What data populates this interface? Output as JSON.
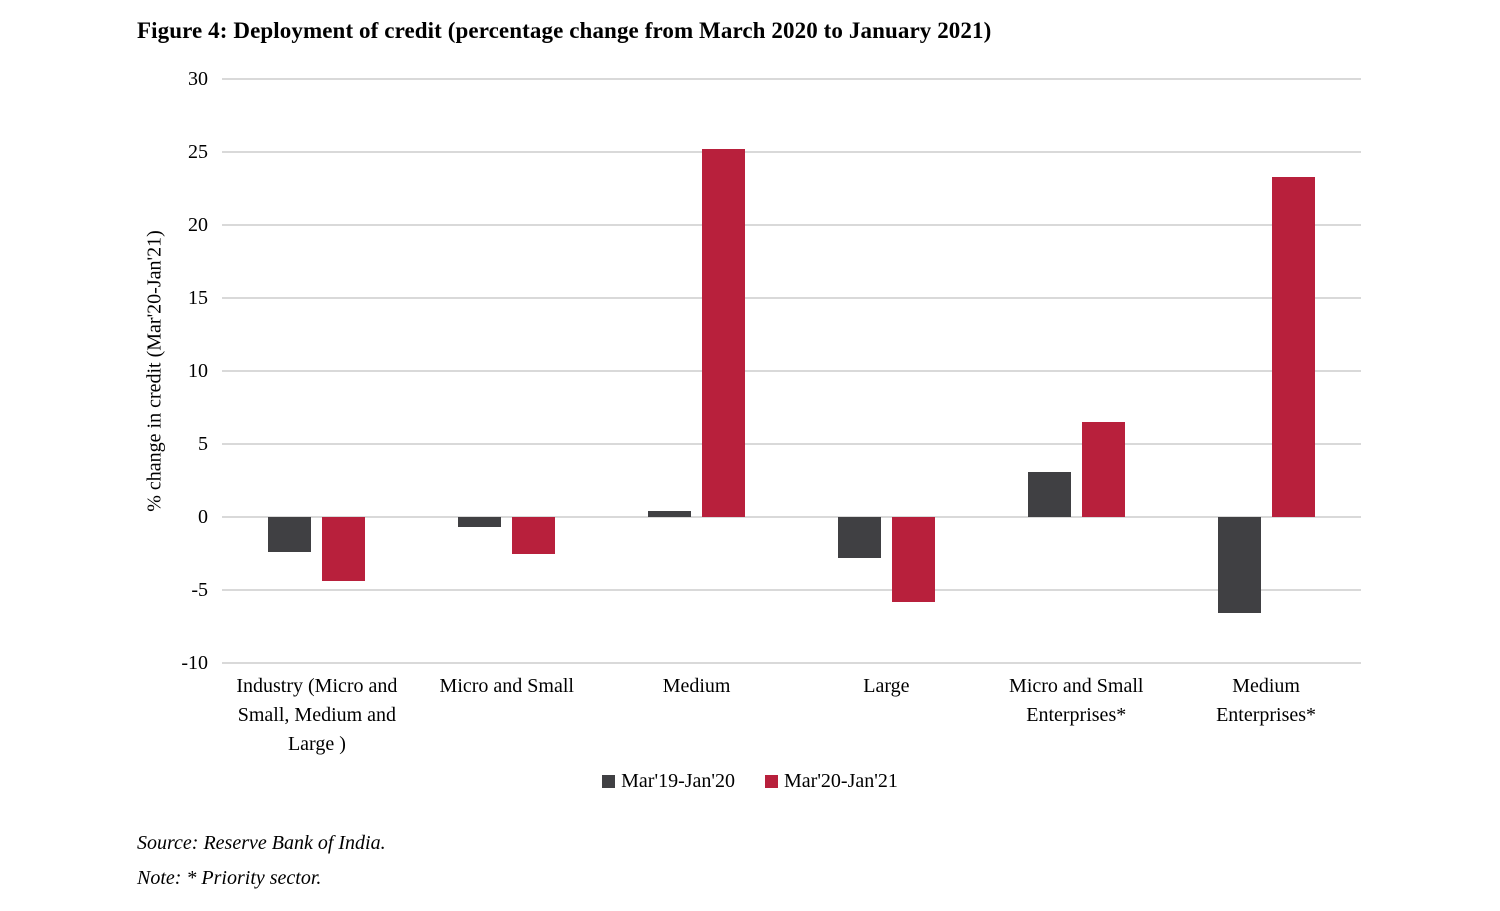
{
  "title": "Figure 4: Deployment of credit (percentage change from March 2020 to January 2021)",
  "chart_data": {
    "type": "bar",
    "categories": [
      "Industry (Micro and\nSmall, Medium and\nLarge )",
      "Micro and Small",
      "Medium",
      "Large",
      "Micro and Small\nEnterprises*",
      "Medium\nEnterprises*"
    ],
    "series": [
      {
        "name": "Mar'19-Jan'20",
        "color": "#404043",
        "values": [
          -2.4,
          -0.7,
          0.4,
          -2.8,
          3.1,
          -6.6
        ]
      },
      {
        "name": "Mar'20-Jan'21",
        "color": "#b8203c",
        "values": [
          -4.4,
          -2.5,
          25.2,
          -5.8,
          6.5,
          23.3
        ]
      }
    ],
    "xlabel": "",
    "ylabel": "% change in credit (Mar'20-Jan'21)",
    "ylim": [
      -10,
      30
    ],
    "yticks": [
      30,
      25,
      20,
      15,
      10,
      5,
      0,
      -5,
      -10
    ],
    "grid": "horizontal",
    "gridline_color": "#d9d9d9",
    "legend_position": "bottom"
  },
  "source": "Source: Reserve Bank of India.",
  "note": "Note: * Priority sector."
}
